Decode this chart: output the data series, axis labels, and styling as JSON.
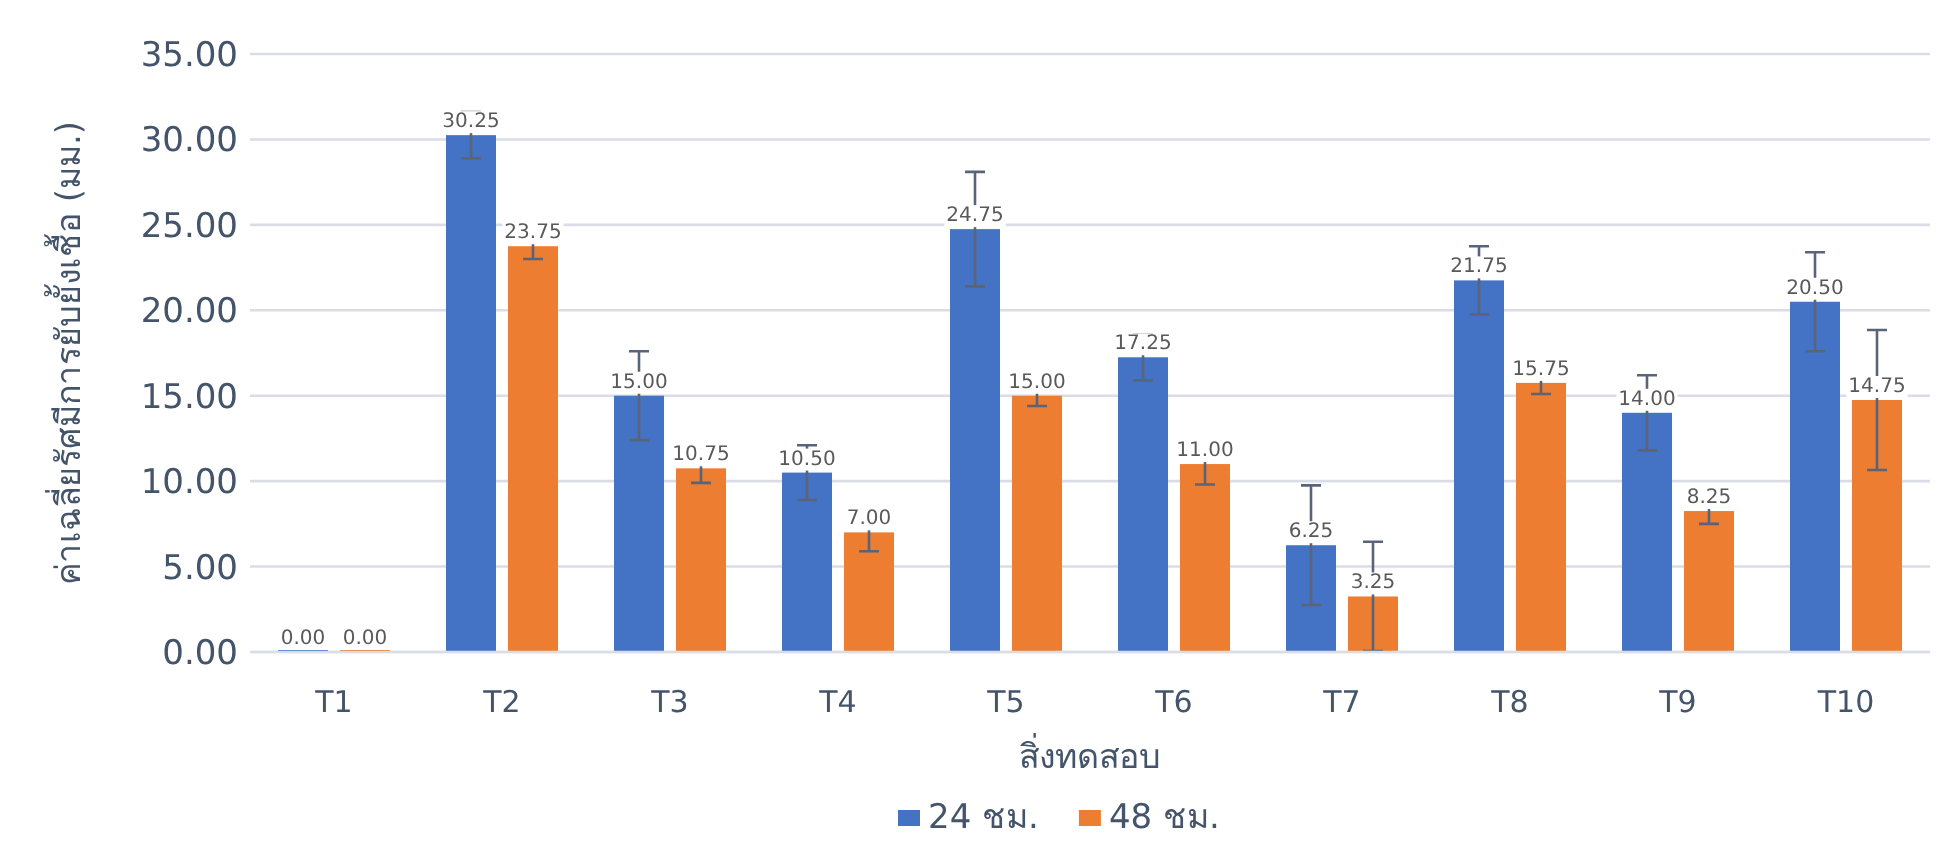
{
  "chart_data": {
    "type": "bar",
    "xlabel": "สิ่งทดสอบ",
    "ylabel": "ค่าเฉลี่ยรัศมีการยับยั้งเชื้อ (มม.)",
    "categories": [
      "T1",
      "T2",
      "T3",
      "T4",
      "T5",
      "T6",
      "T7",
      "T8",
      "T9",
      "T10"
    ],
    "series": [
      {
        "name": "24 ชม.",
        "color": "#4472c4",
        "values": [
          0,
          30.25,
          15,
          10.5,
          24.75,
          17.25,
          6.25,
          21.75,
          14,
          20.5
        ],
        "value_labels": [
          "0.00",
          "30.25",
          "15.00",
          "10.50",
          "24.75",
          "17.25",
          "6.25",
          "21.75",
          "14.00",
          "20.50"
        ],
        "errors": [
          null,
          1.35,
          2.6,
          1.6,
          3.35,
          1.35,
          3.5,
          2.0,
          2.2,
          2.9
        ]
      },
      {
        "name": "48 ชม.",
        "color": "#ed7d31",
        "values": [
          0,
          23.75,
          10.75,
          7,
          15,
          11,
          3.25,
          15.75,
          8.25,
          14.75
        ],
        "value_labels": [
          "0.00",
          "23.75",
          "10.75",
          "7.00",
          "15.00",
          "11.00",
          "3.25",
          "15.75",
          "8.25",
          "14.75"
        ],
        "errors": [
          null,
          0.75,
          0.85,
          1.1,
          0.6,
          1.2,
          3.2,
          0.65,
          0.75,
          4.1
        ]
      }
    ],
    "ylim": [
      0,
      35
    ],
    "yticks": [
      {
        "value": 0,
        "label": "0.00"
      },
      {
        "value": 5,
        "label": "5.00"
      },
      {
        "value": 10,
        "label": "10.00"
      },
      {
        "value": 15,
        "label": "15.00"
      },
      {
        "value": 20,
        "label": "20.00"
      },
      {
        "value": 25,
        "label": "25.00"
      },
      {
        "value": 30,
        "label": "30.00"
      },
      {
        "value": 35,
        "label": "35.00"
      }
    ],
    "grid": "y",
    "legend": "bottom"
  }
}
